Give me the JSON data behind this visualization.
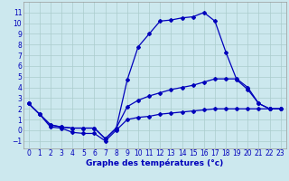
{
  "bg_color": "#cce8ee",
  "grid_color": "#aacccc",
  "line_color": "#0000bb",
  "xlabel": "Graphe des températures (°c)",
  "x_ticks": [
    0,
    1,
    2,
    3,
    4,
    5,
    6,
    7,
    8,
    9,
    10,
    11,
    12,
    13,
    14,
    15,
    16,
    17,
    18,
    19,
    20,
    21,
    22,
    23
  ],
  "y_ticks": [
    -1,
    0,
    1,
    2,
    3,
    4,
    5,
    6,
    7,
    8,
    9,
    10,
    11
  ],
  "ylim": [
    -1.7,
    12.0
  ],
  "xlim": [
    -0.5,
    23.5
  ],
  "line1_y": [
    2.5,
    1.5,
    0.5,
    0.3,
    0.2,
    0.2,
    0.2,
    -0.8,
    0.2,
    4.7,
    7.8,
    9.0,
    10.2,
    10.3,
    10.5,
    10.6,
    11.0,
    10.2,
    7.3,
    4.7,
    3.8,
    2.5,
    2.0,
    2.0
  ],
  "line2_y": [
    2.5,
    1.5,
    0.5,
    0.3,
    0.2,
    0.2,
    0.2,
    -0.8,
    0.2,
    2.2,
    2.8,
    3.2,
    3.5,
    3.8,
    4.0,
    4.2,
    4.5,
    4.8,
    4.8,
    4.8,
    4.0,
    2.5,
    2.0,
    2.0
  ],
  "line3_y": [
    2.5,
    1.5,
    0.3,
    0.2,
    -0.2,
    -0.3,
    -0.3,
    -1.0,
    0.0,
    1.0,
    1.2,
    1.3,
    1.5,
    1.6,
    1.7,
    1.8,
    1.9,
    2.0,
    2.0,
    2.0,
    2.0,
    2.0,
    2.0,
    2.0
  ],
  "tick_fontsize": 5.5,
  "label_fontsize": 6.5
}
